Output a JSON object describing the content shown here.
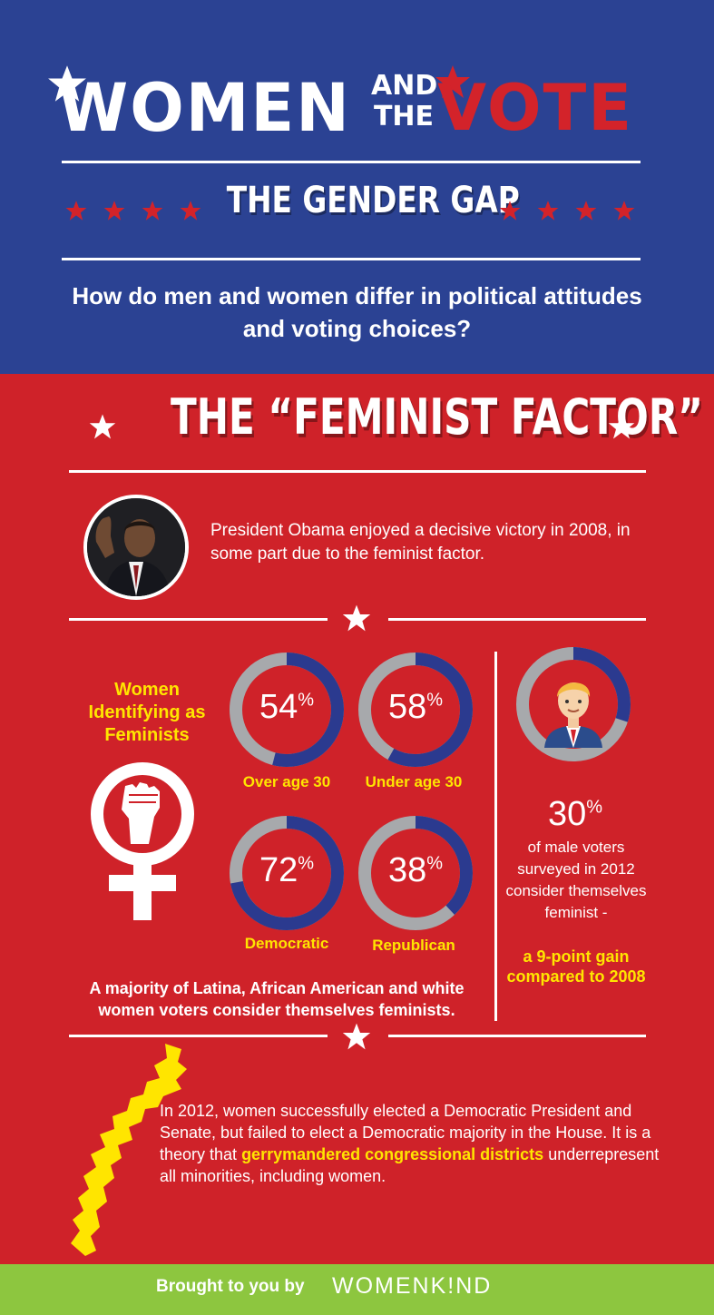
{
  "header": {
    "title_women": "WOMEN",
    "title_and": "AND",
    "title_the": "THE",
    "title_vote": "VOTE",
    "subtitle": "THE GENDER GAP",
    "question": "How do men and women differ in political attitudes and voting choices?"
  },
  "section": {
    "title": "THE “FEMINIST FACTOR”",
    "obama_text": "President Obama enjoyed a decisive victory in 2008, in some part due to the feminist factor."
  },
  "feminists": {
    "label": "Women Identifying as Feminists",
    "rings": [
      {
        "value_text": "54",
        "value": 54,
        "label": "Over age 30"
      },
      {
        "value_text": "58",
        "value": 58,
        "label": "Under age 30"
      },
      {
        "value_text": "72",
        "value": 72,
        "label": "Democratic"
      },
      {
        "value_text": "38",
        "value": 38,
        "label": "Republican"
      }
    ],
    "percent_sign": "%",
    "majority_text": "A majority of Latina, African American and white women voters consider themselves feminists."
  },
  "male": {
    "value_text": "30",
    "value": 30,
    "desc": "of male voters surveyed in 2012 consider themselves feminist -",
    "gain": "a 9-point gain compared to 2008"
  },
  "bottom": {
    "text_part1": "In 2012, women successfully elected a Democratic President and Senate, but failed to elect a Democratic majority in the House. It is a theory that ",
    "highlight": "gerrymandered congressional districts",
    "text_part2": " underrepresent all minorities, including women."
  },
  "footer": {
    "text": "Brought to you by",
    "brand": "WOMENK!ND"
  },
  "colors": {
    "blue": "#2b4293",
    "red": "#cf2229",
    "yellow": "#ffe500",
    "gray": "#a7a9ac",
    "ring_blue": "#2b3a8f",
    "green": "#8dc63f"
  }
}
